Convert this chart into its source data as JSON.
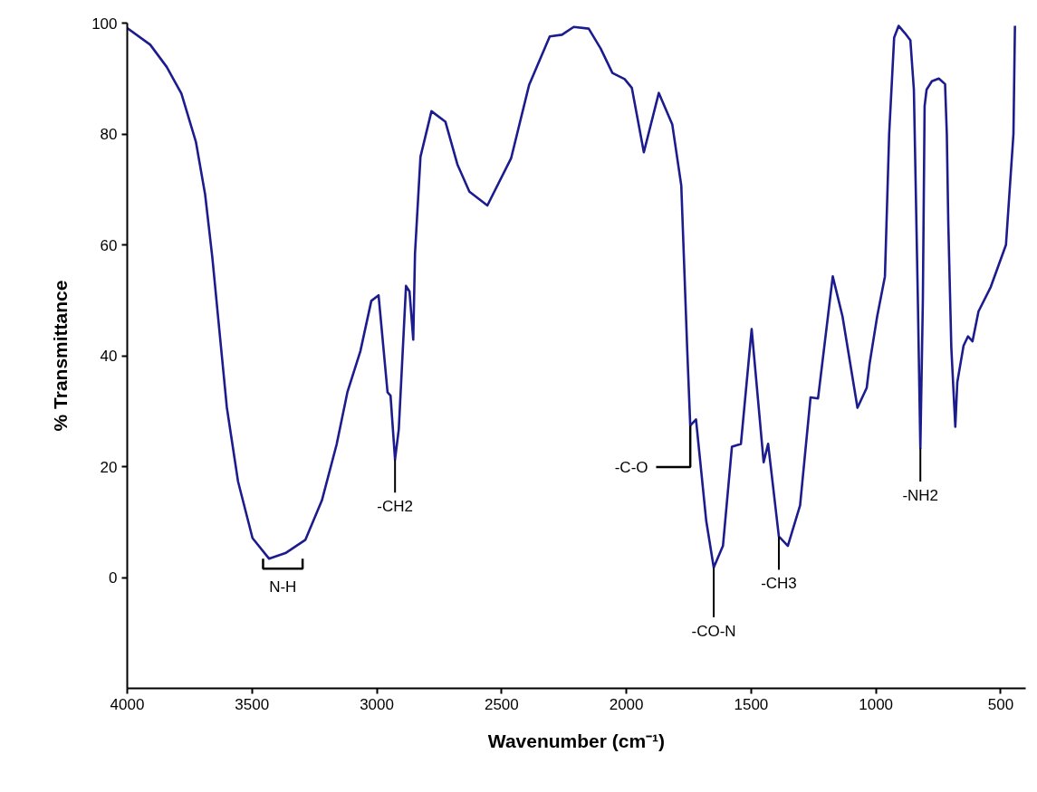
{
  "chart_data": {
    "type": "line",
    "xlabel": "Wavenumber (cm⁻¹)",
    "ylabel": "% Transmittance",
    "xlim": [
      4000,
      400
    ],
    "ylim": [
      -20,
      100
    ],
    "xticks": [
      4000,
      3500,
      3000,
      2500,
      2000,
      1500,
      1000,
      500
    ],
    "yticks": [
      0,
      20,
      40,
      60,
      80,
      100
    ],
    "grid": false,
    "marker": "none",
    "line_style": "solid",
    "series": [
      {
        "color": "#1c1c8f",
        "x": [
          4000,
          3908,
          3842,
          3783,
          3725,
          3688,
          3659,
          3630,
          3601,
          3556,
          3498,
          3432,
          3366,
          3286,
          3220,
          3161,
          3118,
          3066,
          3022,
          2993,
          2957,
          2945,
          2927,
          2912,
          2883,
          2869,
          2854,
          2847,
          2825,
          2781,
          2725,
          2677,
          2629,
          2557,
          2462,
          2390,
          2307,
          2258,
          2211,
          2151,
          2103,
          2056,
          2007,
          1978,
          1930,
          1870,
          1816,
          1780,
          1756,
          1744,
          1721,
          1680,
          1650,
          1613,
          1577,
          1541,
          1498,
          1450,
          1432,
          1389,
          1353,
          1304,
          1262,
          1232,
          1173,
          1134,
          1074,
          1037,
          1025,
          995,
          964,
          947,
          927,
          909,
          884,
          862,
          848,
          832,
          822,
          812,
          805,
          797,
          776,
          748,
          723,
          716,
          710,
          698,
          682,
          674,
          649,
          631,
          613,
          589,
          540,
          479,
          449,
          443
        ],
        "values": [
          99.1,
          96.1,
          92.1,
          87.3,
          78.6,
          69.1,
          57.7,
          44.2,
          30.7,
          17.3,
          7.1,
          3.4,
          4.4,
          6.8,
          13.9,
          24,
          33.4,
          40.8,
          49.9,
          50.9,
          33.4,
          32.8,
          21.3,
          26.7,
          52.6,
          51.6,
          42.9,
          58.4,
          75.9,
          84.1,
          82.2,
          74.5,
          69.6,
          67.1,
          75.6,
          88.8,
          97.6,
          97.9,
          99.3,
          99,
          95.4,
          91,
          89.9,
          88.3,
          76.7,
          87.4,
          81.7,
          70.7,
          40.9,
          27.4,
          28.5,
          10.2,
          1.8,
          5.7,
          23.6,
          24.1,
          44.8,
          20.8,
          24.1,
          7.4,
          5.7,
          13,
          32.5,
          32.3,
          54.3,
          47.1,
          30.6,
          34.2,
          38.7,
          47.1,
          54.3,
          80,
          97.4,
          99.5,
          98.2,
          96.9,
          88,
          50,
          23.3,
          50,
          85,
          88,
          89.5,
          90,
          89,
          80,
          63.8,
          41.5,
          27.2,
          35.2,
          41.8,
          43.5,
          42.6,
          48,
          52.4,
          60,
          80,
          99.5
        ]
      }
    ],
    "annotations": [
      {
        "text": "N-H",
        "x": 3432,
        "y": 3.4
      },
      {
        "text": "-CH2",
        "x": 2927,
        "y": 21.3
      },
      {
        "text": "-C-O",
        "x": 1744,
        "y": 27.4
      },
      {
        "text": "-CO-N",
        "x": 1650,
        "y": 1.8
      },
      {
        "text": "-CH3",
        "x": 1389,
        "y": 7.4
      },
      {
        "text": "-NH2",
        "x": 822,
        "y": 23.3
      }
    ]
  }
}
